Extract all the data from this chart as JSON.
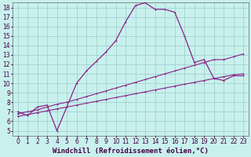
{
  "bg_color": "#c8f0ec",
  "line_color": "#882288",
  "grid_color": "#99cccc",
  "xlabel": "Windchill (Refroidissement éolien,°C)",
  "xlim": [
    -0.5,
    23.5
  ],
  "ylim": [
    4.5,
    18.5
  ],
  "xticks": [
    0,
    1,
    2,
    3,
    4,
    5,
    6,
    7,
    8,
    9,
    10,
    11,
    12,
    13,
    14,
    15,
    16,
    17,
    18,
    19,
    20,
    21,
    22,
    23
  ],
  "yticks": [
    5,
    6,
    7,
    8,
    9,
    10,
    11,
    12,
    13,
    14,
    15,
    16,
    17,
    18
  ],
  "series_main_x": [
    0,
    1,
    2,
    3,
    4,
    5,
    6,
    7,
    8,
    9,
    10,
    11,
    12,
    13,
    14,
    15,
    16,
    17,
    18,
    19,
    20,
    21,
    22,
    23
  ],
  "series_main_y": [
    7.0,
    6.6,
    7.5,
    7.7,
    5.0,
    7.5,
    10.0,
    11.3,
    12.3,
    13.3,
    14.5,
    16.5,
    18.2,
    18.5,
    17.8,
    17.8,
    17.5,
    15.0,
    12.2,
    12.5,
    10.5,
    10.3,
    10.8,
    10.8
  ],
  "series_hi_x": [
    0,
    1,
    2,
    3,
    4,
    5,
    6,
    7,
    8,
    9,
    10,
    11,
    12,
    13,
    14,
    15,
    16,
    17,
    18,
    19,
    20,
    21,
    22,
    23
  ],
  "series_hi_y": [
    6.8,
    7.0,
    7.2,
    7.5,
    7.8,
    8.0,
    8.3,
    8.6,
    8.9,
    9.2,
    9.5,
    9.8,
    10.1,
    10.4,
    10.7,
    11.0,
    11.3,
    11.6,
    11.9,
    12.2,
    12.5,
    12.5,
    12.8,
    13.1
  ],
  "series_lo_x": [
    0,
    1,
    2,
    3,
    4,
    5,
    6,
    7,
    8,
    9,
    10,
    11,
    12,
    13,
    14,
    15,
    16,
    17,
    18,
    19,
    20,
    21,
    22,
    23
  ],
  "series_lo_y": [
    6.5,
    6.7,
    6.9,
    7.1,
    7.3,
    7.5,
    7.7,
    7.9,
    8.1,
    8.3,
    8.5,
    8.7,
    8.9,
    9.1,
    9.3,
    9.5,
    9.7,
    9.9,
    10.1,
    10.3,
    10.5,
    10.7,
    10.9,
    11.0
  ],
  "font_size_label": 6.5,
  "font_size_tick": 5.5
}
